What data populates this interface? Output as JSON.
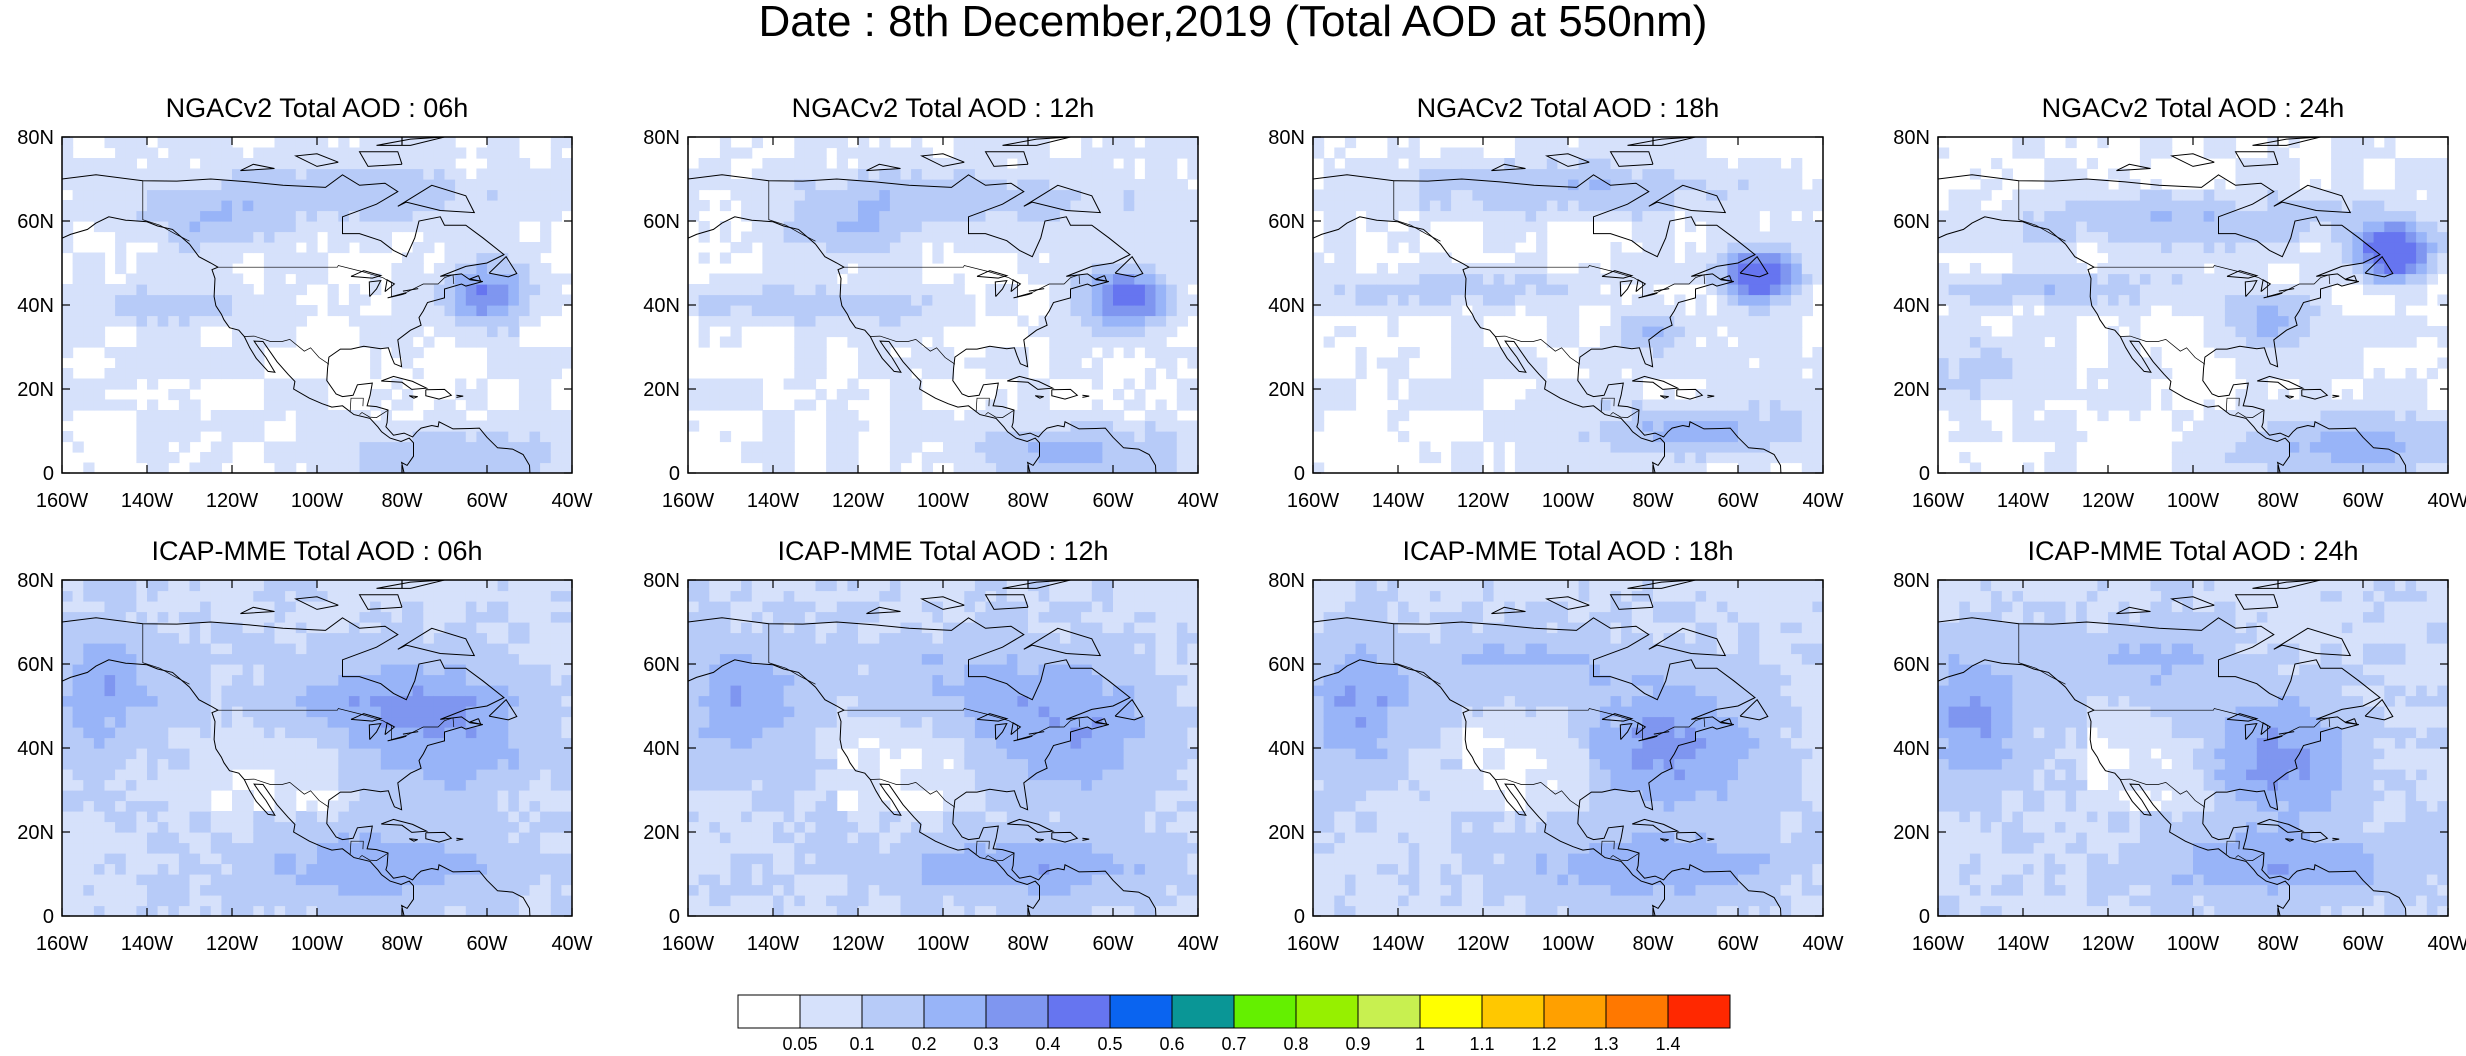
{
  "figure": {
    "title": "Date : 8th December,2019 (Total AOD at 550nm)"
  },
  "panels": [
    {
      "id": "ngac-06",
      "title": "NGACv2 Total AOD : 06h"
    },
    {
      "id": "ngac-12",
      "title": "NGACv2 Total AOD : 12h"
    },
    {
      "id": "ngac-18",
      "title": "NGACv2 Total AOD : 18h"
    },
    {
      "id": "ngac-24",
      "title": "NGACv2 Total AOD : 24h"
    },
    {
      "id": "icap-06",
      "title": "ICAP-MME Total AOD : 06h"
    },
    {
      "id": "icap-12",
      "title": "ICAP-MME Total AOD : 12h"
    },
    {
      "id": "icap-18",
      "title": "ICAP-MME Total AOD : 18h"
    },
    {
      "id": "icap-24",
      "title": "ICAP-MME Total AOD : 24h"
    }
  ],
  "axes": {
    "lat_ticks": [
      "80N",
      "60N",
      "40N",
      "20N",
      "0"
    ],
    "lon_ticks": [
      "160W",
      "140W",
      "120W",
      "100W",
      "80W",
      "60W",
      "40W"
    ],
    "lat_range": [
      0,
      80
    ],
    "lon_range": [
      -160,
      -40
    ]
  },
  "colorbar": {
    "colors": [
      "#ffffff",
      "#d6e1fb",
      "#b7cbf8",
      "#98b4f8",
      "#7f96f0",
      "#6675f0",
      "#0a64f0",
      "#0a9696",
      "#64f000",
      "#96f000",
      "#c8f050",
      "#ffff00",
      "#ffc800",
      "#ffa000",
      "#ff7800",
      "#ff2800"
    ],
    "labels": [
      "0.05",
      "0.1",
      "0.2",
      "0.3",
      "0.4",
      "0.5",
      "0.6",
      "0.7",
      "0.8",
      "0.9",
      "1",
      "1.1",
      "1.2",
      "1.3",
      "1.4"
    ]
  },
  "field_colors": {
    "background": "#ffffff",
    "low": "#d6e1fb",
    "mid": "#b7cbf8",
    "high": "#98b4f8",
    "very_high": "#7f96f0",
    "peak": "#6675f0"
  }
}
